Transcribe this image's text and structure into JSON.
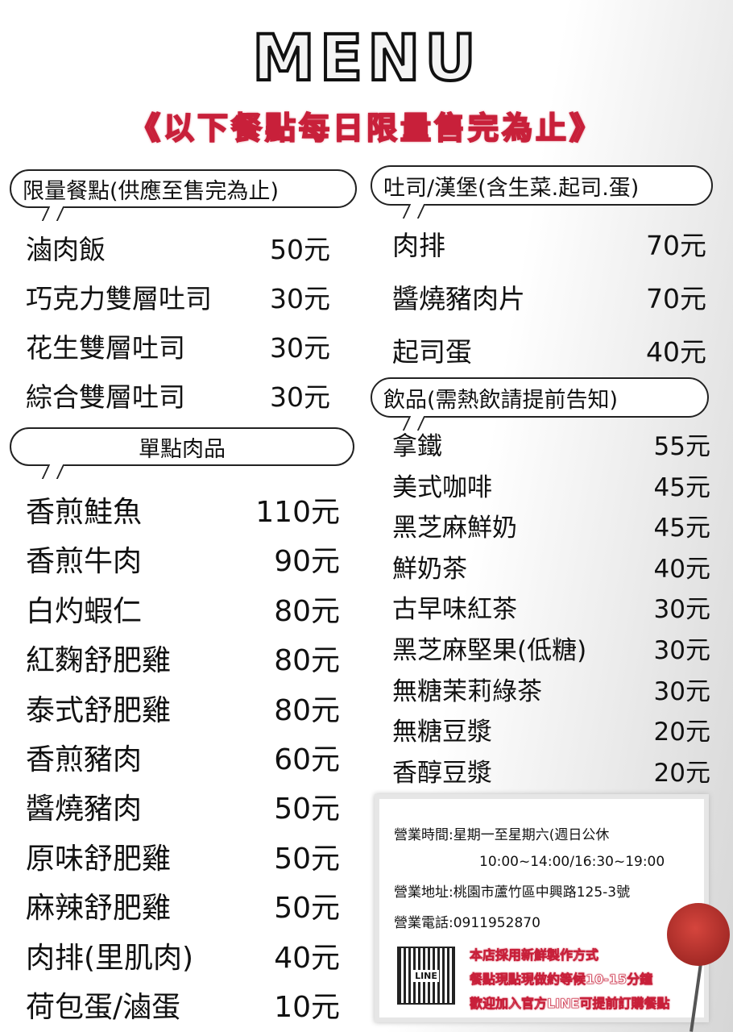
{
  "header": {
    "title": "MENU",
    "subtitle": "《以下餐點每日限量售完為止》"
  },
  "sections": {
    "limited": {
      "title": "限量餐點(供應至售完為止)",
      "items": [
        {
          "name": "滷肉飯",
          "price": "50元"
        },
        {
          "name": "巧克力雙層吐司",
          "price": "30元"
        },
        {
          "name": "花生雙層吐司",
          "price": "30元"
        },
        {
          "name": "綜合雙層吐司",
          "price": "30元"
        }
      ]
    },
    "meat": {
      "title": "單點肉品",
      "items": [
        {
          "name": "香煎鮭魚",
          "price": "110元"
        },
        {
          "name": "香煎牛肉",
          "price": "90元"
        },
        {
          "name": "白灼蝦仁",
          "price": "80元"
        },
        {
          "name": "紅麴舒肥雞",
          "price": "80元"
        },
        {
          "name": "泰式舒肥雞",
          "price": "80元"
        },
        {
          "name": "香煎豬肉",
          "price": "60元"
        },
        {
          "name": "醬燒豬肉",
          "price": "50元"
        },
        {
          "name": "原味舒肥雞",
          "price": "50元"
        },
        {
          "name": "麻辣舒肥雞",
          "price": "50元"
        },
        {
          "name": "肉排(里肌肉)",
          "price": "40元"
        },
        {
          "name": "荷包蛋/滷蛋",
          "price": "10元"
        }
      ]
    },
    "toast": {
      "title": "吐司/漢堡(含生菜.起司.蛋)",
      "items": [
        {
          "name": "肉排",
          "price": "70元"
        },
        {
          "name": "醬燒豬肉片",
          "price": "70元"
        },
        {
          "name": "起司蛋",
          "price": "40元"
        }
      ]
    },
    "drinks": {
      "title": "飲品(需熱飲請提前告知)",
      "items": [
        {
          "name": "拿鐵",
          "price": "55元"
        },
        {
          "name": "美式咖啡",
          "price": "45元"
        },
        {
          "name": "黑芝麻鮮奶",
          "price": "45元"
        },
        {
          "name": "鮮奶茶",
          "price": "40元"
        },
        {
          "name": "古早味紅茶",
          "price": "30元"
        },
        {
          "name": "黑芝麻堅果(低糖)",
          "price": "30元"
        },
        {
          "name": "無糖茉莉綠茶",
          "price": "30元"
        },
        {
          "name": "無糖豆漿",
          "price": "20元"
        },
        {
          "name": "香醇豆漿",
          "price": "20元"
        }
      ]
    }
  },
  "info": {
    "hours": "營業時間:星期一至星期六(週日公休",
    "hours_time": "10:00~14:00/16:30~19:00",
    "address": "營業地址:桃園市蘆竹區中興路125-3號",
    "phone": "營業電話:0911952870",
    "qr_label": "LINE",
    "notes": [
      "本店採用新鮮製作方式",
      "餐點現點現做約等候10-15分鐘",
      "歡迎加入官方LINE可提前訂購餐點"
    ]
  },
  "colors": {
    "accent": "#c8203a",
    "rose": "#b8312c"
  }
}
